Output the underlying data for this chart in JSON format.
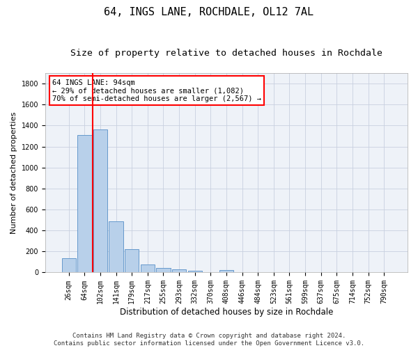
{
  "title": "64, INGS LANE, ROCHDALE, OL12 7AL",
  "subtitle": "Size of property relative to detached houses in Rochdale",
  "xlabel": "Distribution of detached houses by size in Rochdale",
  "ylabel": "Number of detached properties",
  "bar_labels": [
    "26sqm",
    "64sqm",
    "102sqm",
    "141sqm",
    "179sqm",
    "217sqm",
    "255sqm",
    "293sqm",
    "332sqm",
    "370sqm",
    "408sqm",
    "446sqm",
    "484sqm",
    "523sqm",
    "561sqm",
    "599sqm",
    "637sqm",
    "675sqm",
    "714sqm",
    "752sqm",
    "790sqm"
  ],
  "bar_values": [
    135,
    1310,
    1365,
    485,
    225,
    75,
    45,
    30,
    15,
    0,
    20,
    0,
    0,
    0,
    0,
    0,
    0,
    0,
    0,
    0,
    0
  ],
  "bar_color": "#b8d0ea",
  "bar_edge_color": "#6699cc",
  "vline_color": "red",
  "ylim": [
    0,
    1900
  ],
  "yticks": [
    0,
    200,
    400,
    600,
    800,
    1000,
    1200,
    1400,
    1600,
    1800
  ],
  "annotation_line1": "64 INGS LANE: 94sqm",
  "annotation_line2": "← 29% of detached houses are smaller (1,082)",
  "annotation_line3": "70% of semi-detached houses are larger (2,567) →",
  "footer_line1": "Contains HM Land Registry data © Crown copyright and database right 2024.",
  "footer_line2": "Contains public sector information licensed under the Open Government Licence v3.0.",
  "background_color": "#eef2f8",
  "grid_color": "#c8d0e0",
  "title_fontsize": 11,
  "subtitle_fontsize": 9.5,
  "ylabel_fontsize": 8,
  "xlabel_fontsize": 8.5,
  "tick_fontsize": 7,
  "annotation_fontsize": 7.5,
  "footer_fontsize": 6.5
}
